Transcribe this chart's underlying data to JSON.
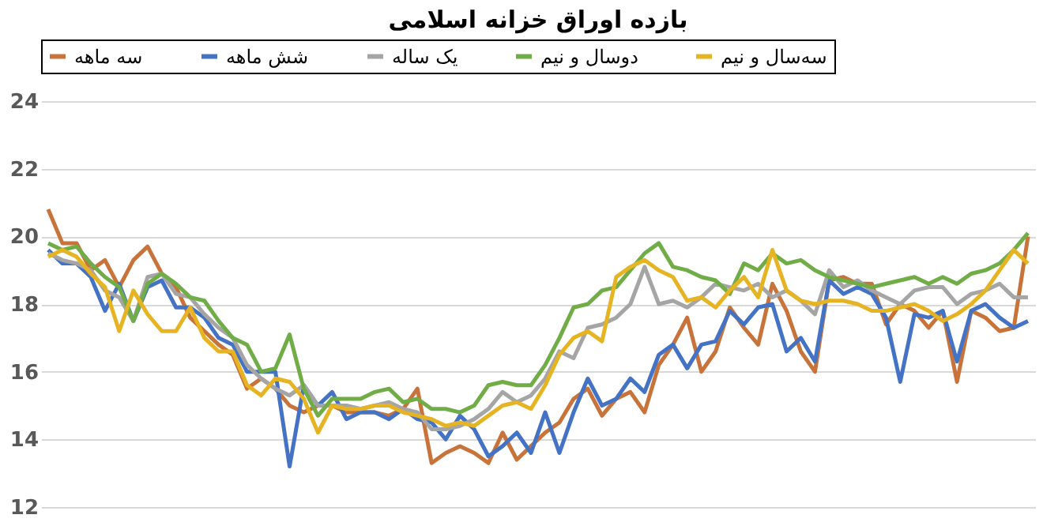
{
  "chart_data": {
    "type": "line",
    "title": "بازده اوراق خزانه اسلامی",
    "categories": [
      null,
      null,
      null,
      null,
      null,
      null,
      null,
      null,
      null,
      null,
      null,
      null,
      null,
      null,
      null,
      null,
      null,
      null,
      null,
      null,
      null,
      null,
      null,
      null,
      null,
      null,
      null,
      null,
      null,
      null,
      null,
      null,
      null,
      null,
      null,
      null,
      null,
      null,
      null,
      null,
      null,
      null,
      null,
      null,
      null,
      null,
      null,
      null,
      null,
      null,
      null,
      null,
      null,
      null,
      null,
      null,
      null,
      null,
      null,
      null,
      null,
      null,
      null,
      null,
      null,
      null,
      null,
      null,
      null,
      null
    ],
    "series": [
      {
        "name": "سه ماهه",
        "color": "#c8733a",
        "values": [
          20.8,
          19.8,
          19.8,
          19.0,
          19.3,
          18.5,
          19.3,
          19.7,
          18.9,
          18.5,
          17.6,
          17.2,
          16.8,
          16.5,
          15.5,
          15.8,
          15.5,
          15.0,
          14.8,
          15.0,
          15.0,
          14.8,
          14.8,
          14.8,
          14.7,
          14.9,
          15.5,
          13.3,
          13.6,
          13.8,
          13.6,
          13.3,
          14.2,
          13.4,
          13.8,
          14.2,
          14.5,
          15.2,
          15.5,
          14.7,
          15.2,
          15.4,
          14.8,
          16.2,
          16.8,
          17.6,
          16.0,
          16.6,
          17.9,
          17.3,
          16.8,
          18.6,
          17.8,
          16.6,
          16.0,
          18.7,
          18.8,
          18.6,
          18.6,
          17.4,
          18.0,
          17.8,
          17.3,
          17.8,
          15.7,
          17.8,
          17.6,
          17.2,
          17.3,
          20.0
        ]
      },
      {
        "name": "شش ماهه",
        "color": "#4472c4",
        "values": [
          19.6,
          19.2,
          19.2,
          18.8,
          17.8,
          18.6,
          17.5,
          18.5,
          18.7,
          17.9,
          17.9,
          17.6,
          17.0,
          16.8,
          16.0,
          16.0,
          16.0,
          13.2,
          15.6,
          15.0,
          15.4,
          14.6,
          14.8,
          14.8,
          14.6,
          14.9,
          14.6,
          14.5,
          14.0,
          14.7,
          14.3,
          13.5,
          13.8,
          14.2,
          13.6,
          14.8,
          13.6,
          14.8,
          15.8,
          15.0,
          15.2,
          15.8,
          15.4,
          16.5,
          16.8,
          16.1,
          16.8,
          16.9,
          17.8,
          17.4,
          17.9,
          18.0,
          16.6,
          17.0,
          16.3,
          18.7,
          18.3,
          18.5,
          18.3,
          17.6,
          15.7,
          17.7,
          17.6,
          17.8,
          16.3,
          17.8,
          18.0,
          17.6,
          17.3,
          17.5
        ]
      },
      {
        "name": "یک ساله",
        "color": "#a5a5a5",
        "values": [
          19.5,
          19.3,
          19.2,
          19.0,
          18.4,
          18.2,
          17.5,
          18.8,
          18.9,
          18.3,
          18.2,
          17.7,
          17.3,
          17.0,
          16.2,
          15.8,
          15.5,
          15.3,
          15.6,
          15.0,
          15.0,
          15.0,
          14.9,
          15.0,
          15.1,
          14.9,
          14.8,
          14.3,
          14.3,
          14.4,
          14.6,
          14.9,
          15.4,
          15.1,
          15.3,
          15.8,
          16.6,
          16.4,
          17.3,
          17.4,
          17.6,
          18.0,
          19.1,
          18.0,
          18.1,
          17.9,
          18.2,
          18.6,
          18.5,
          18.4,
          18.6,
          18.2,
          18.4,
          18.1,
          17.7,
          19.0,
          18.5,
          18.7,
          18.4,
          18.2,
          18.0,
          18.4,
          18.5,
          18.5,
          18.0,
          18.3,
          18.4,
          18.6,
          18.2,
          18.2
        ]
      },
      {
        "name": "دوسال و نیم",
        "color": "#70ad47",
        "values": [
          19.8,
          19.6,
          19.7,
          19.2,
          18.8,
          18.5,
          17.5,
          18.6,
          18.9,
          18.6,
          18.2,
          18.1,
          17.5,
          17.0,
          16.8,
          16.0,
          16.1,
          17.1,
          15.5,
          14.7,
          15.2,
          15.2,
          15.2,
          15.4,
          15.5,
          15.1,
          15.2,
          14.9,
          14.9,
          14.8,
          15.0,
          15.6,
          15.7,
          15.6,
          15.6,
          16.2,
          17.0,
          17.9,
          18.0,
          18.4,
          18.5,
          19.0,
          19.5,
          19.8,
          19.1,
          19.0,
          18.8,
          18.7,
          18.3,
          19.2,
          19.0,
          19.5,
          19.2,
          19.3,
          19.0,
          18.8,
          18.7,
          18.6,
          18.5,
          18.6,
          18.7,
          18.8,
          18.6,
          18.8,
          18.6,
          18.9,
          19.0,
          19.2,
          19.6,
          20.1
        ]
      },
      {
        "name": "سه‌سال و نیم",
        "color": "#e6b422",
        "values": [
          19.4,
          19.6,
          19.4,
          18.9,
          18.5,
          17.2,
          18.4,
          17.7,
          17.2,
          17.2,
          17.9,
          17.0,
          16.6,
          16.6,
          15.6,
          15.3,
          15.8,
          15.7,
          15.2,
          14.2,
          15.0,
          14.9,
          14.9,
          15.0,
          15.0,
          14.8,
          14.7,
          14.6,
          14.4,
          14.5,
          14.4,
          14.7,
          15.0,
          15.1,
          14.9,
          15.6,
          16.5,
          17.0,
          17.2,
          16.9,
          18.8,
          19.1,
          19.3,
          19.0,
          18.8,
          18.1,
          18.2,
          17.9,
          18.4,
          18.8,
          18.2,
          19.6,
          18.4,
          18.1,
          18.0,
          18.1,
          18.1,
          18.0,
          17.8,
          17.8,
          17.9,
          18.0,
          17.8,
          17.5,
          17.7,
          18.0,
          18.4,
          19.0,
          19.6,
          19.2
        ]
      }
    ],
    "ylim": [
      12,
      24
    ],
    "yticks": [
      12,
      14,
      16,
      18,
      20,
      22,
      24
    ],
    "grid": "y",
    "legend": "top",
    "tick_labels": "y",
    "marker": "none",
    "line_style": "solid"
  }
}
